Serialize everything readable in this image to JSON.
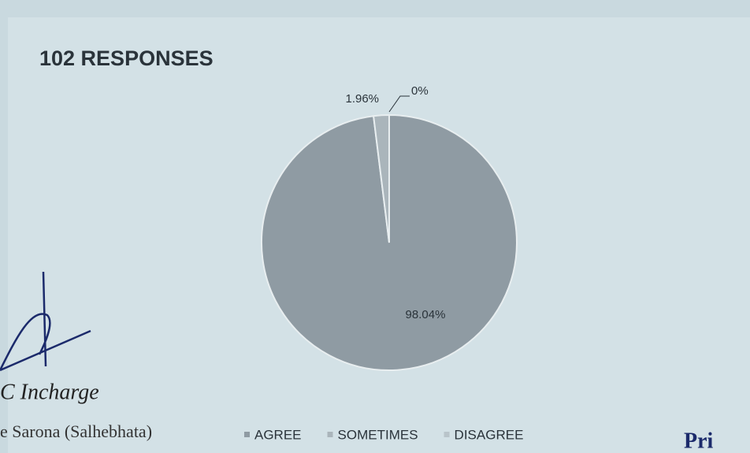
{
  "chart_data": {
    "type": "pie",
    "title": "102 RESPONSES",
    "categories": [
      "AGREE",
      "SOMETIMES",
      "DISAGREE"
    ],
    "values": [
      98.04,
      1.96,
      0
    ],
    "value_labels": [
      "98.04%",
      "1.96%",
      "0%"
    ],
    "colors": [
      "#8f9ba3",
      "#aab5bb",
      "#b9c4ca"
    ],
    "legend": "bottom",
    "annotations": [
      "C Incharge",
      "e Sarona (Salhebhata)",
      "Pri"
    ]
  }
}
